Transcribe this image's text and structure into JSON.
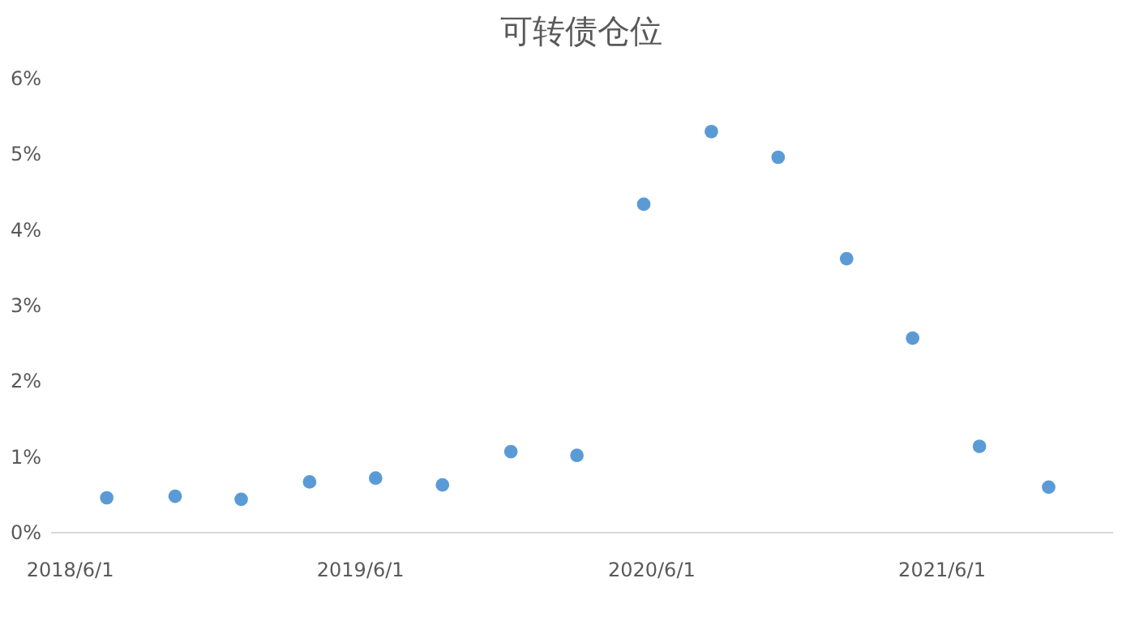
{
  "chart_data": {
    "type": "scatter",
    "title": "可转债仓位",
    "x": [
      "2018-07-18",
      "2018-10-12",
      "2019-01-03",
      "2019-03-30",
      "2019-06-21",
      "2019-09-13",
      "2019-12-08",
      "2020-02-29",
      "2020-05-23",
      "2020-08-16",
      "2020-11-08",
      "2021-02-02",
      "2021-04-26",
      "2021-07-19",
      "2021-10-14"
    ],
    "series": [
      {
        "color": "#5b9bd5",
        "values": [
          0.45,
          0.47,
          0.43,
          0.66,
          0.71,
          0.62,
          1.06,
          1.01,
          4.33,
          5.29,
          4.95,
          3.61,
          2.56,
          1.13,
          0.59
        ]
      }
    ],
    "xlim": [
      "2018-05-08",
      "2022-01-02"
    ],
    "xticks": [
      {
        "value": "2018-06-01",
        "label": "2018/6/1"
      },
      {
        "value": "2019-06-01",
        "label": "2019/6/1"
      },
      {
        "value": "2020-06-01",
        "label": "2020/6/1"
      },
      {
        "value": "2021-06-01",
        "label": "2021/6/1"
      }
    ],
    "ylim": [
      0,
      6
    ],
    "yticks": [
      {
        "value": 0,
        "label": "0%"
      },
      {
        "value": 1,
        "label": "1%"
      },
      {
        "value": 2,
        "label": "2%"
      },
      {
        "value": 3,
        "label": "3%"
      },
      {
        "value": 4,
        "label": "4%"
      },
      {
        "value": 5,
        "label": "5%"
      },
      {
        "value": 6,
        "label": "6%"
      }
    ],
    "marker": "circle",
    "grid": false
  }
}
